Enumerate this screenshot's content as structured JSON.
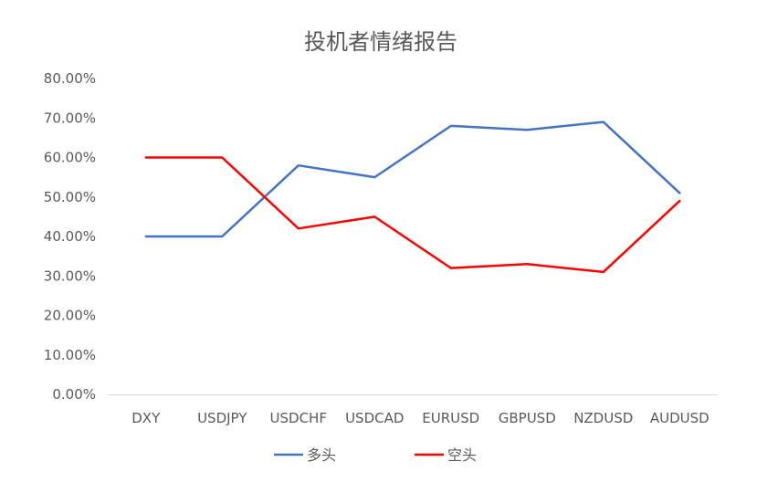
{
  "chart_data": {
    "type": "line",
    "title": "投机者情绪报告",
    "categories": [
      "DXY",
      "USDJPY",
      "USDCHF",
      "USDCAD",
      "EURUSD",
      "GBPUSD",
      "NZDUSD",
      "AUDUSD"
    ],
    "y_ticks": [
      "0.00%",
      "10.00%",
      "20.00%",
      "30.00%",
      "40.00%",
      "50.00%",
      "60.00%",
      "70.00%",
      "80.00%"
    ],
    "ylim": [
      0,
      80
    ],
    "grid": false,
    "legend_position": "bottom",
    "series": [
      {
        "name": "多头",
        "color": "#4472c4",
        "values": [
          40,
          40,
          58,
          55,
          68,
          67,
          69,
          51
        ]
      },
      {
        "name": "空头",
        "color": "#ff0000",
        "values": [
          60,
          60,
          42,
          45,
          32,
          33,
          31,
          49
        ]
      }
    ]
  }
}
